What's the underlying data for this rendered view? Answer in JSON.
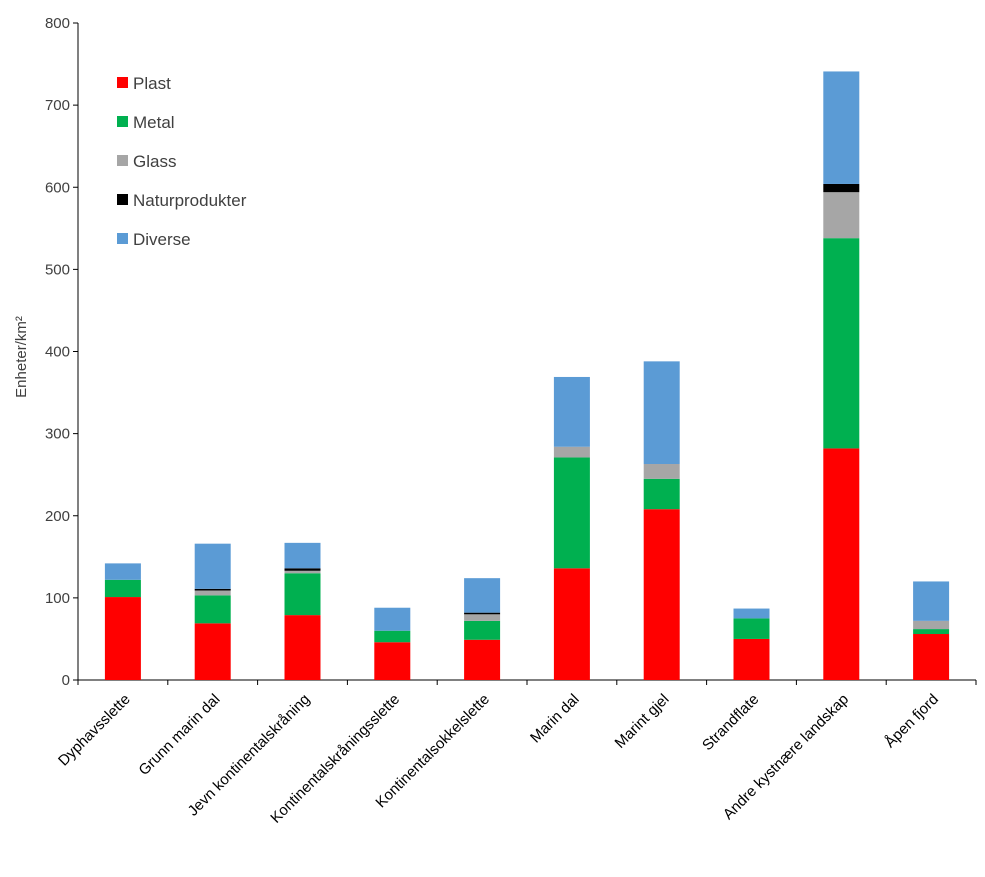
{
  "chart_data": {
    "type": "bar",
    "stacked": true,
    "title": "",
    "xlabel": "",
    "ylabel": "Enheter/km²",
    "ylim": [
      0,
      800
    ],
    "yticks": [
      0,
      100,
      200,
      300,
      400,
      500,
      600,
      700,
      800
    ],
    "grid": false,
    "legend_position": "top-left",
    "categories": [
      "Dyphavsslette",
      "Grunn marin dal",
      "Jevn kontinentalskråning",
      "Kontinentalskråningsslette",
      "Kontinentalsokkelslette",
      "Marin dal",
      "Marint gjel",
      "Strandflate",
      "Andre kystnære landskap",
      "Åpen fjord"
    ],
    "series": [
      {
        "name": "Plast",
        "color": "#ff0000",
        "values": [
          101,
          69,
          79,
          46,
          49,
          136,
          208,
          50,
          282,
          56
        ]
      },
      {
        "name": "Metal",
        "color": "#00b050",
        "values": [
          21,
          34,
          51,
          14,
          23,
          135,
          37,
          25,
          256,
          6
        ]
      },
      {
        "name": "Glass",
        "color": "#a6a6a6",
        "values": [
          0,
          6,
          3,
          0,
          8,
          13,
          18,
          0,
          56,
          10
        ]
      },
      {
        "name": "Naturprodukter",
        "color": "#000000",
        "values": [
          0,
          2,
          3,
          0,
          2,
          0,
          0,
          0,
          10,
          0
        ]
      },
      {
        "name": "Diverse",
        "color": "#5b9bd5",
        "values": [
          20,
          55,
          31,
          28,
          42,
          85,
          125,
          12,
          137,
          48
        ]
      }
    ]
  }
}
